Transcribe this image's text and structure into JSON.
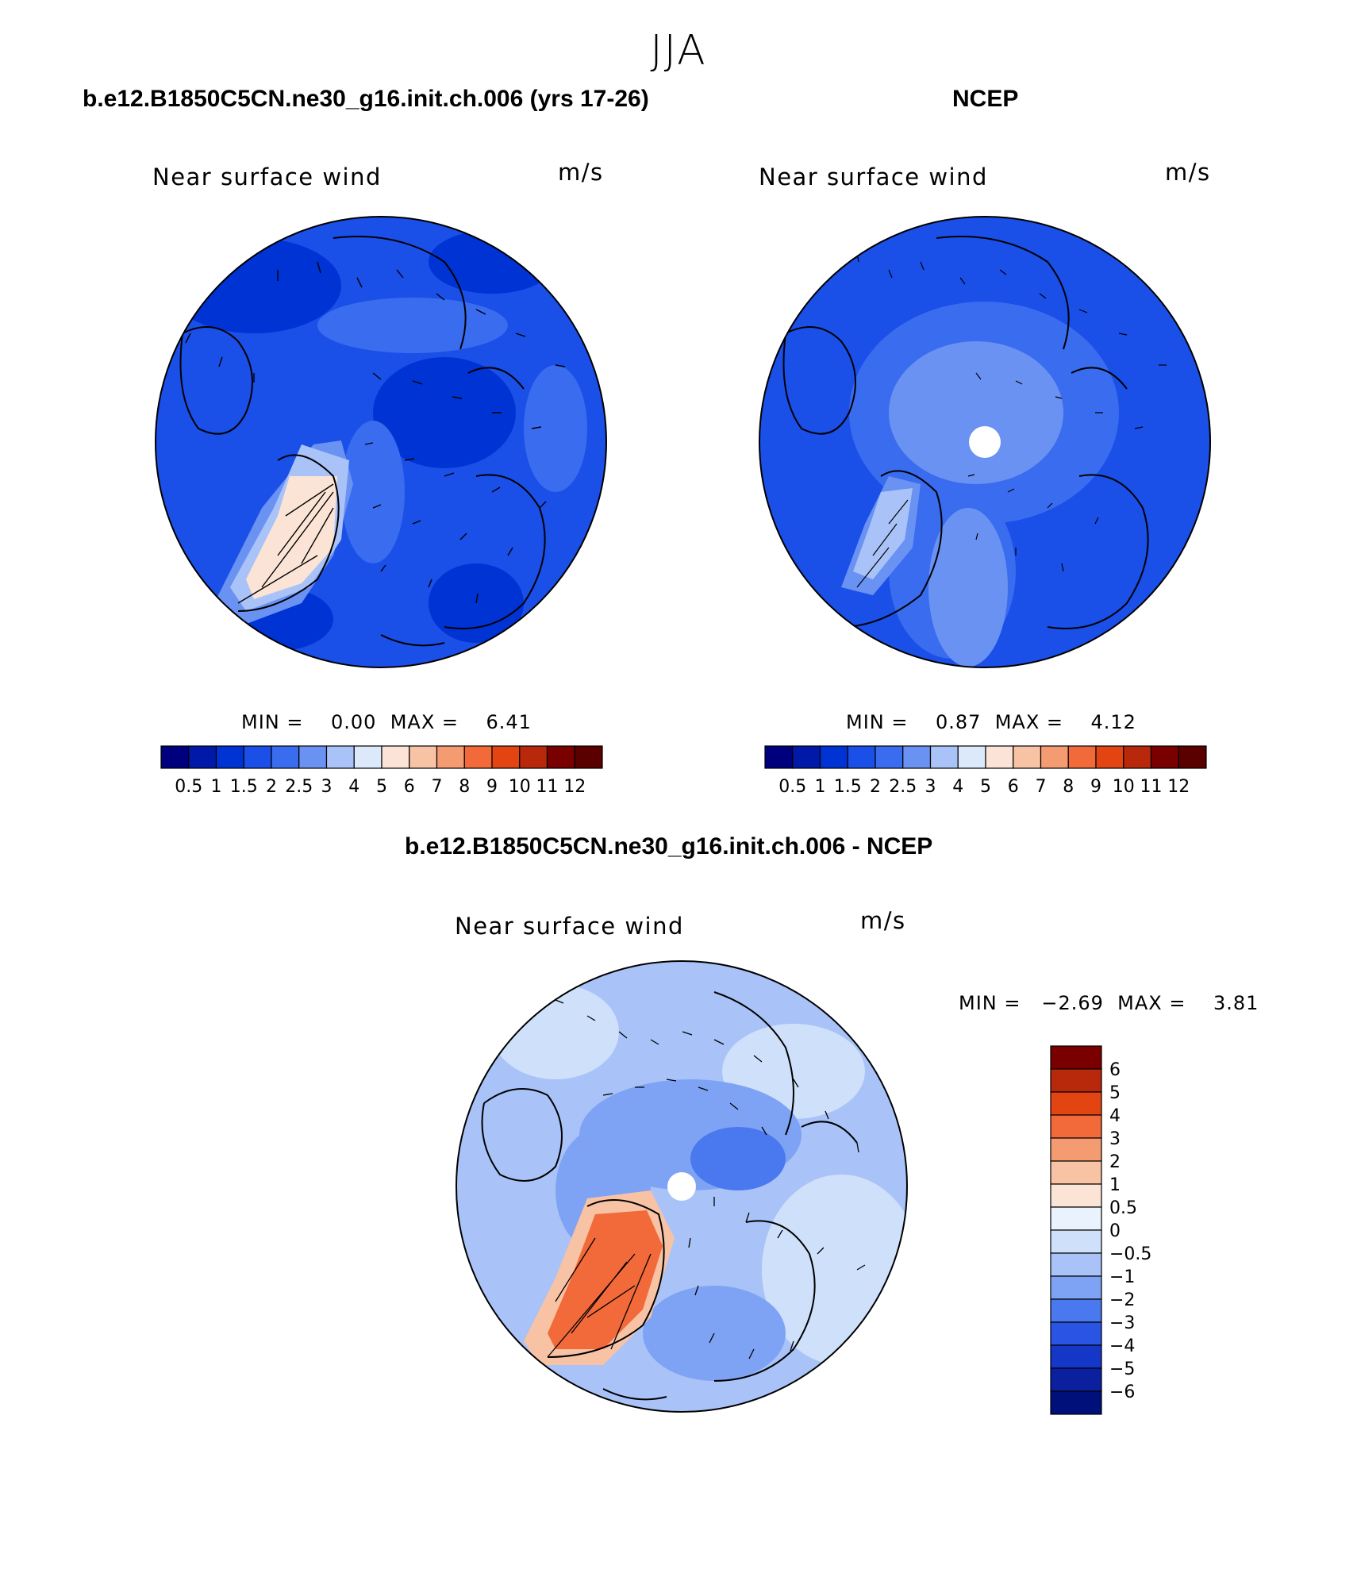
{
  "title": "JJA",
  "units": "m/s",
  "panels": [
    {
      "title": "b.e12.B1850C5CN.ne30_g16.init.ch.006 (yrs 17-26)",
      "field_label": "Near surface wind",
      "units": "m/s",
      "stats": "MIN =    0.00  MAX =    6.41"
    },
    {
      "title": "NCEP",
      "field_label": "Near surface wind",
      "units": "m/s",
      "stats": "MIN =    0.87  MAX =    4.12"
    },
    {
      "title": "b.e12.B1850C5CN.ne30_g16.init.ch.006 - NCEP",
      "field_label": "Near surface wind",
      "units": "m/s",
      "stats": "MIN =   −2.69  MAX =    3.81"
    }
  ],
  "chart_data": [
    {
      "type": "heatmap",
      "projection": "north polar stereographic",
      "variable": "Near surface wind",
      "min": 0.0,
      "max": 6.41,
      "colorbar": {
        "levels": [
          "0.5",
          "1",
          "1.5",
          "2",
          "2.5",
          "3",
          "4",
          "5",
          "6",
          "7",
          "8",
          "9",
          "10",
          "11",
          "12"
        ],
        "colors": [
          "#00007f",
          "#0019a8",
          "#0033d4",
          "#1a4fe8",
          "#3a6cf0",
          "#6a92f2",
          "#a9c3f8",
          "#dce9fb",
          "#fbe4d6",
          "#f8c2a4",
          "#f59b72",
          "#f26a3a",
          "#e24512",
          "#b8280a",
          "#7a0000",
          "#5a0000"
        ],
        "orientation": "horizontal"
      }
    },
    {
      "type": "heatmap",
      "projection": "north polar stereographic",
      "variable": "Near surface wind",
      "min": 0.87,
      "max": 4.12,
      "colorbar": {
        "levels": [
          "0.5",
          "1",
          "1.5",
          "2",
          "2.5",
          "3",
          "4",
          "5",
          "6",
          "7",
          "8",
          "9",
          "10",
          "11",
          "12"
        ],
        "colors": [
          "#00007f",
          "#0019a8",
          "#0033d4",
          "#1a4fe8",
          "#3a6cf0",
          "#6a92f2",
          "#a9c3f8",
          "#dce9fb",
          "#fbe4d6",
          "#f8c2a4",
          "#f59b72",
          "#f26a3a",
          "#e24512",
          "#b8280a",
          "#7a0000",
          "#5a0000"
        ],
        "orientation": "horizontal"
      }
    },
    {
      "type": "heatmap",
      "projection": "north polar stereographic",
      "variable": "Near surface wind difference",
      "min": -2.69,
      "max": 3.81,
      "colorbar": {
        "levels": [
          "6",
          "5",
          "4",
          "3",
          "2",
          "1",
          "0.5",
          "0",
          "−0.5",
          "−1",
          "−2",
          "−3",
          "−4",
          "−5",
          "−6"
        ],
        "colors": [
          "#7a0000",
          "#b8280a",
          "#e24512",
          "#f26a3a",
          "#f59b72",
          "#f8c2a4",
          "#fbe4d6",
          "#eaf2fd",
          "#cfe0fb",
          "#a9c3f8",
          "#7ea3f4",
          "#4a78ee",
          "#2a55e4",
          "#1437c8",
          "#0a209e",
          "#00107a"
        ],
        "orientation": "vertical"
      }
    }
  ]
}
